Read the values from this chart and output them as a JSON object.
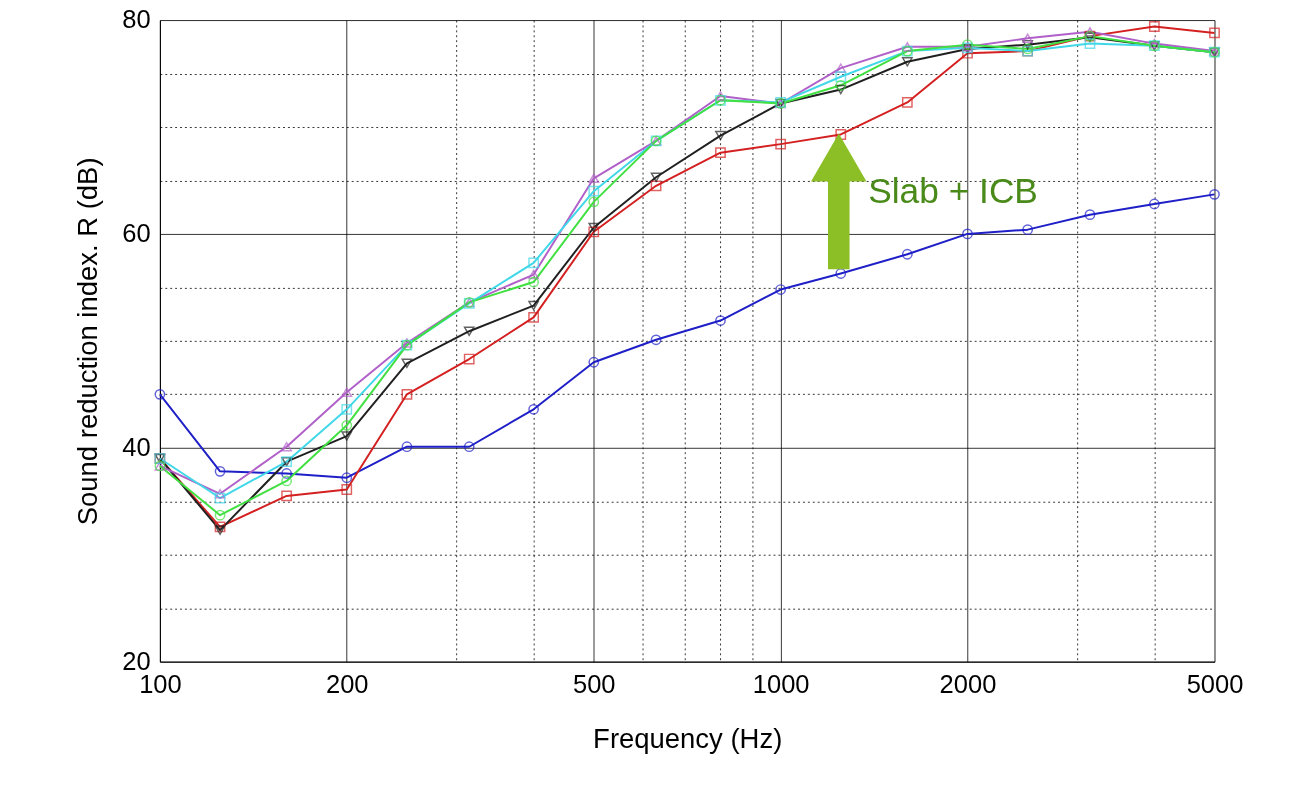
{
  "chart_data": {
    "type": "line",
    "xlabel": "Frequency (Hz)",
    "ylabel": "Sound reduction index. R (dB)",
    "log": "x",
    "grid": true,
    "legend": false,
    "line_style": "solid",
    "x": [
      100,
      125,
      160,
      200,
      250,
      315,
      400,
      500,
      630,
      800,
      1000,
      1250,
      1600,
      2000,
      2500,
      3150,
      4000,
      5000
    ],
    "xlim": [
      100,
      5000
    ],
    "ylim": [
      20,
      80
    ],
    "xticks": [
      100,
      200,
      500,
      1000,
      2000,
      5000,
      {
        "value": 300,
        "label": null
      },
      {
        "value": 400,
        "label": null
      },
      {
        "value": 600,
        "label": null
      },
      {
        "value": 700,
        "label": null
      },
      {
        "value": 800,
        "label": null
      },
      {
        "value": 900,
        "label": null
      },
      {
        "value": 3000,
        "label": null
      },
      {
        "value": 4000,
        "label": null
      }
    ],
    "yticks": [
      20,
      40,
      60,
      80,
      {
        "value": 25,
        "label": null
      },
      {
        "value": 30,
        "label": null
      },
      {
        "value": 35,
        "label": null
      },
      {
        "value": 45,
        "label": null
      },
      {
        "value": 50,
        "label": null
      },
      {
        "value": 55,
        "label": null
      },
      {
        "value": 65,
        "label": null
      },
      {
        "value": 70,
        "label": null
      },
      {
        "value": 75,
        "label": null
      }
    ],
    "annotations": [
      "Slab + ICB"
    ],
    "series": [
      {
        "color": "#1f1fc8",
        "marker": "circle",
        "values": [
          45,
          37.8,
          37.6,
          37.2,
          40.1,
          40.1,
          43.6,
          48,
          50.1,
          51.9,
          54.8,
          56.3,
          58.1,
          60,
          60.4,
          61.8,
          62.8,
          63.7
        ]
      },
      {
        "color": "#d42020",
        "marker": "square",
        "values": [
          39,
          32.6,
          35.5,
          36.1,
          45,
          48.3,
          52.2,
          60.2,
          64.5,
          67.6,
          68.4,
          69.3,
          72.3,
          76.9,
          77.1,
          78.5,
          79.4,
          78.8
        ]
      },
      {
        "color": "#202020",
        "marker": "triangle",
        "values": [
          39,
          32.3,
          38.7,
          41.1,
          47.9,
          50.9,
          53.3,
          60.6,
          65.3,
          69.2,
          72.2,
          73.5,
          76.1,
          77.3,
          77.7,
          78.4,
          77.6,
          77
        ]
      },
      {
        "color": "#b060c8",
        "marker": "triangle",
        "values": [
          38.3,
          35.7,
          40.1,
          45.2,
          49.8,
          53.6,
          56.2,
          65.2,
          68.7,
          72.9,
          72.2,
          75.5,
          77.5,
          77.5,
          78.3,
          78.9,
          77.8,
          77.1
        ]
      },
      {
        "color": "#40d8e8",
        "marker": "square",
        "values": [
          39,
          35.3,
          38.7,
          43.6,
          49.6,
          53.5,
          57.3,
          64,
          68.7,
          72.5,
          72.3,
          74.7,
          77.1,
          77.4,
          77.1,
          77.8,
          77.6,
          77
        ]
      },
      {
        "color": "#40e040",
        "marker": "circle",
        "values": [
          38.3,
          33.7,
          36.9,
          42.1,
          49.6,
          53.6,
          55.5,
          63,
          68.7,
          72.5,
          72.2,
          73.9,
          77.1,
          77.7,
          77.3,
          78.5,
          77.6,
          77
        ]
      }
    ]
  }
}
